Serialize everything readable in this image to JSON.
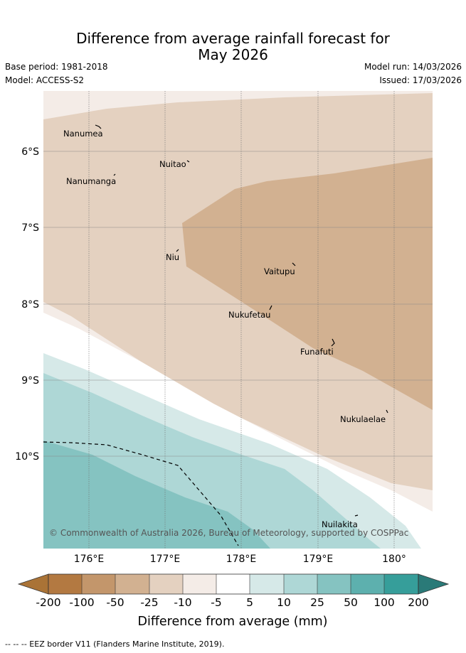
{
  "header": {
    "title_line1": "Difference from average rainfall forecast for",
    "title_line2": "May 2026",
    "base_period": "Base period: 1981-2018",
    "model": "Model: ACCESS-S2",
    "model_run": "Model run: 14/03/2026",
    "issued": "Issued: 17/03/2026"
  },
  "map": {
    "lat_labels": [
      "6°S",
      "7°S",
      "8°S",
      "9°S",
      "10°S"
    ],
    "lon_labels": [
      "176°E",
      "177°E",
      "178°E",
      "179°E",
      "180°"
    ],
    "islands": [
      "Nanumea",
      "Nuitao",
      "Nanumanga",
      "Niu",
      "Vaitupu",
      "Nukufetau",
      "Funafuti",
      "Nukulaelae",
      "Nuilakita"
    ],
    "copyright": "© Commonwealth of Australia 2026, Bureau of Meteorology, supported by COSPPac"
  },
  "legend": {
    "ticks": [
      "-200",
      "-100",
      "-50",
      "-25",
      "-10",
      "-5",
      "5",
      "10",
      "25",
      "50",
      "100",
      "200"
    ],
    "label": "Difference from average (mm)",
    "colors": [
      "#aa7336",
      "#b37941",
      "#c3966b",
      "#d2b191",
      "#e4d1c0",
      "#f4ece7",
      "#ffffff",
      "#d6e9e8",
      "#aed7d6",
      "#85c3c1",
      "#5db0ae",
      "#369e9a",
      "#2a7a78"
    ]
  },
  "footer": {
    "eez_note": "-- -- -- EEZ border V11 (Flanders Marine Institute, 2019)."
  }
}
